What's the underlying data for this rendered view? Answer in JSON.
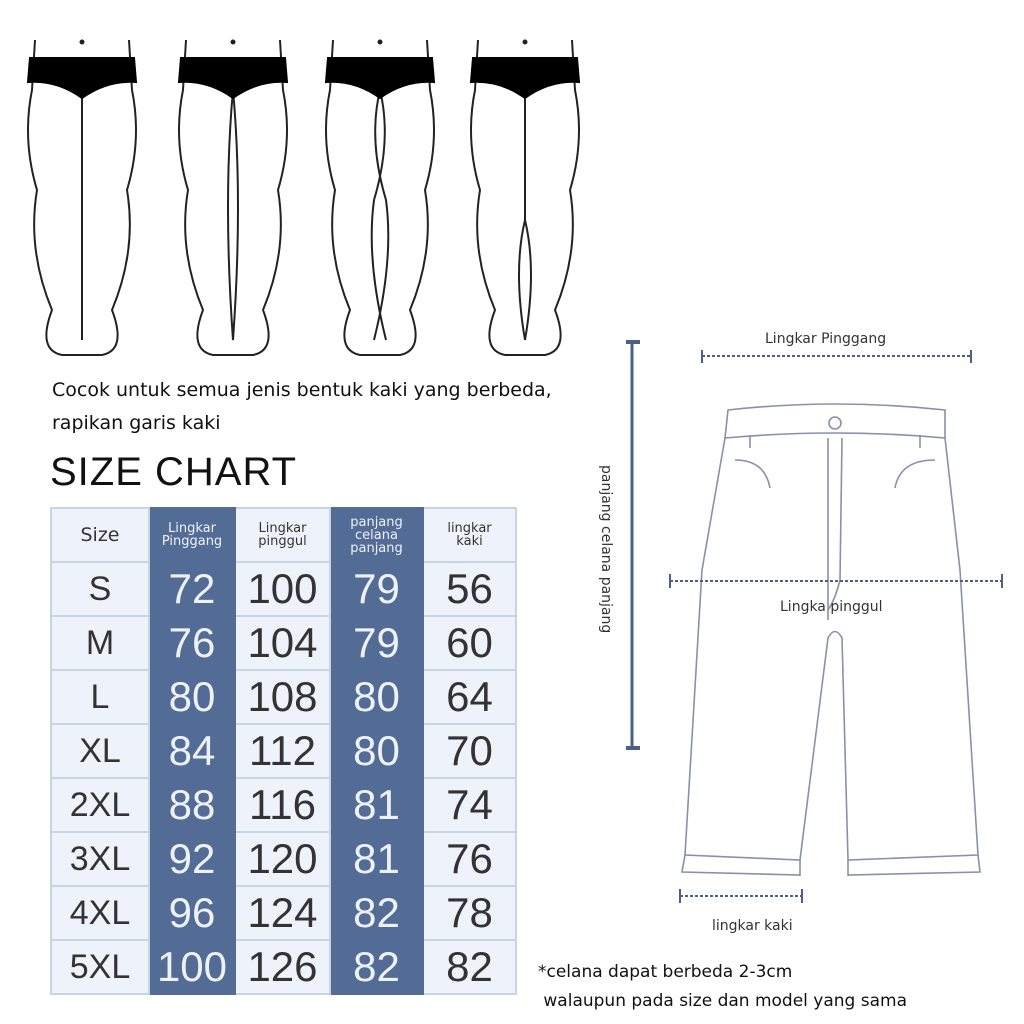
{
  "caption": {
    "line1": "Cocok untuk semua jenis bentuk kaki yang berbeda,",
    "line2": "rapikan garis kaki"
  },
  "title": "SIZE CHART",
  "colors": {
    "table_accent": "#536c96",
    "table_light": "#eef3fb",
    "measure_line": "#4a5f8a"
  },
  "table": {
    "headers": [
      [
        "Size"
      ],
      [
        "Lingkar",
        "Pinggang"
      ],
      [
        "Lingkar",
        "pinggul"
      ],
      [
        "panjang",
        "celana",
        "panjang"
      ],
      [
        "lingkar",
        "kaki"
      ]
    ],
    "rows": [
      [
        "S",
        "72",
        "100",
        "79",
        "56"
      ],
      [
        "M",
        "76",
        "104",
        "79",
        "60"
      ],
      [
        "L",
        "80",
        "108",
        "80",
        "64"
      ],
      [
        "XL",
        "84",
        "112",
        "80",
        "70"
      ],
      [
        "2XL",
        "88",
        "116",
        "81",
        "74"
      ],
      [
        "3XL",
        "92",
        "120",
        "81",
        "76"
      ],
      [
        "4XL",
        "96",
        "124",
        "82",
        "78"
      ],
      [
        "5XL",
        "100",
        "126",
        "82",
        "82"
      ]
    ]
  },
  "diagram": {
    "waist": "Lingkar Pinggang",
    "hip": "Lingka pinggul",
    "length": "panjang celana panjang",
    "leg": "lingkar kaki"
  },
  "note": {
    "line1": "*celana dapat berbeda 2-3cm",
    "line2": " walaupun pada size dan model yang sama"
  }
}
